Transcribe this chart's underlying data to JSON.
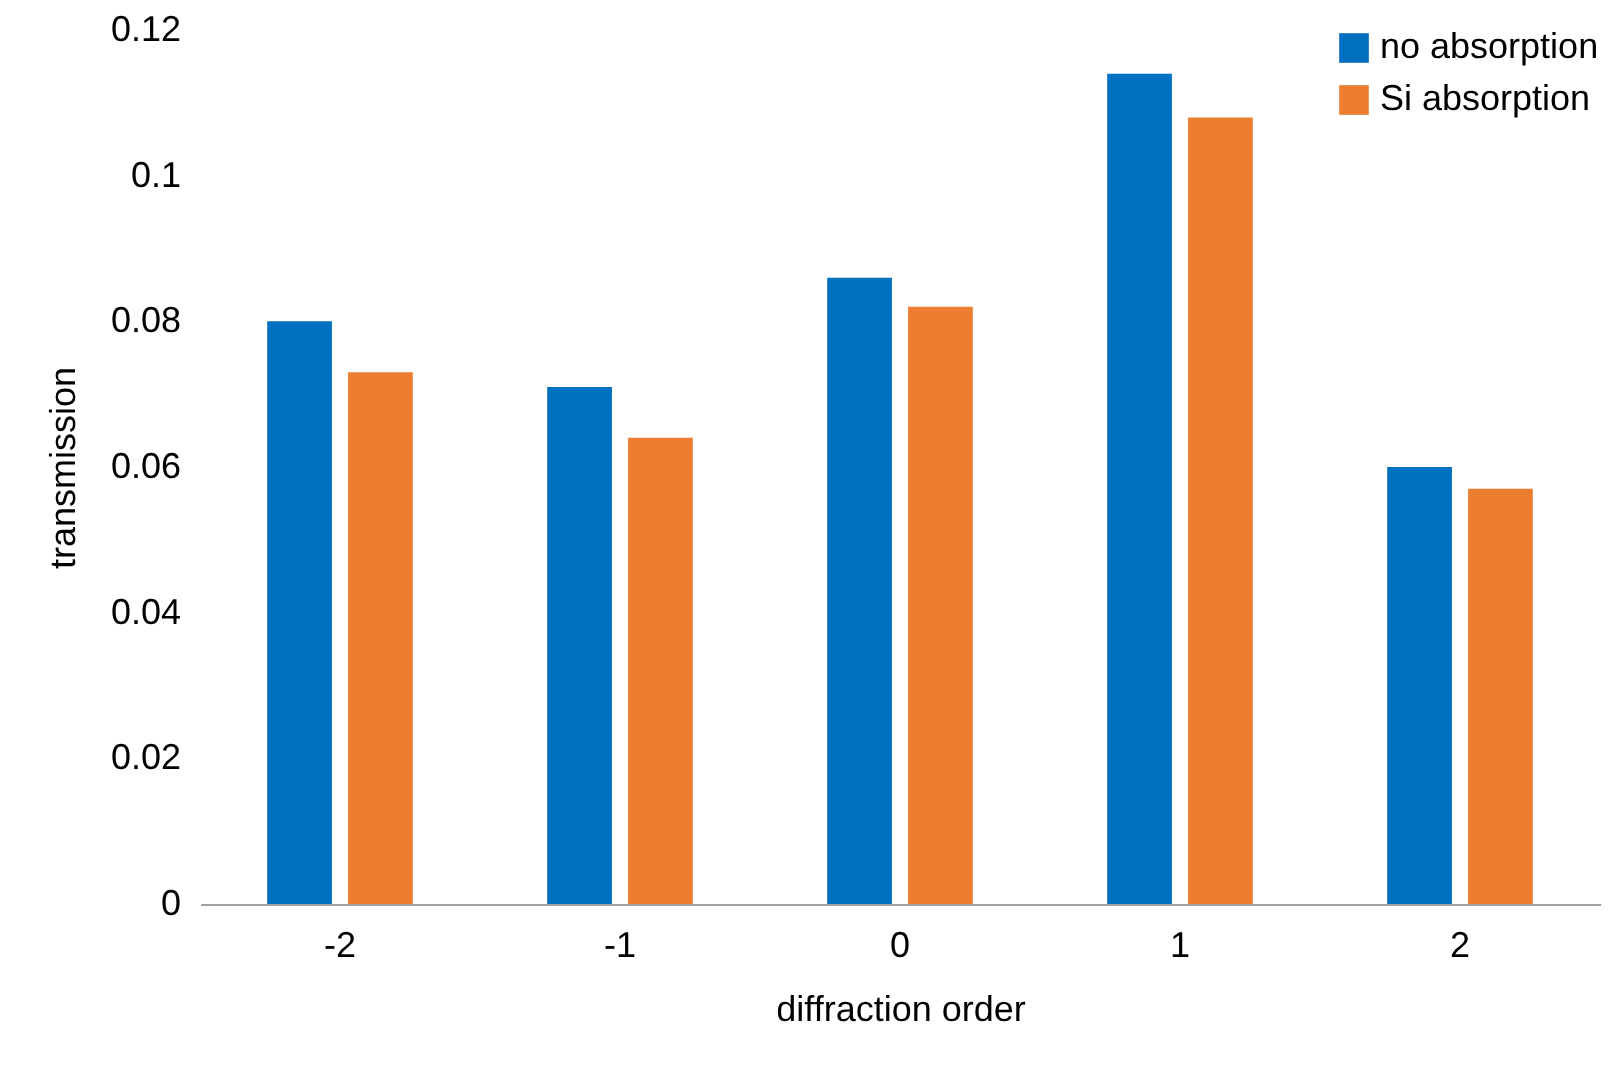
{
  "chart_data": {
    "type": "bar",
    "xlabel": "diffraction order",
    "ylabel": "transmission",
    "categories": [
      "-2",
      "-1",
      "0",
      "1",
      "2"
    ],
    "series": [
      {
        "name": "no absorption",
        "color": "#0070c0",
        "values": [
          0.08,
          0.071,
          0.086,
          0.114,
          0.06
        ]
      },
      {
        "name": "Si absorption",
        "color": "#ed7d31",
        "values": [
          0.073,
          0.064,
          0.082,
          0.108,
          0.057
        ]
      }
    ],
    "ylim": [
      0,
      0.12
    ],
    "yticks": [
      0,
      0.02,
      0.04,
      0.06,
      0.08,
      0.1,
      0.12
    ],
    "grid": false,
    "legend": "top right"
  }
}
